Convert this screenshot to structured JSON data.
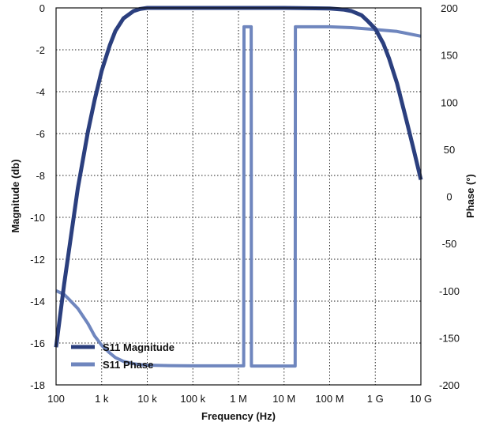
{
  "chart_data": {
    "type": "line",
    "xlabel": "Frequency (Hz)",
    "ylabel_left": "Magnitude (db)",
    "ylabel_right": "Phase (°)",
    "x_scale": "log",
    "xlim": [
      100,
      10000000000
    ],
    "ylim_left": [
      -18,
      0
    ],
    "ylim_right": [
      -200,
      200
    ],
    "grid": true,
    "legend_position": "bottom-left",
    "x_ticks": [
      {
        "value": 100,
        "label": "100"
      },
      {
        "value": 1000,
        "label": "1 k"
      },
      {
        "value": 10000,
        "label": "10 k"
      },
      {
        "value": 100000,
        "label": "100 k"
      },
      {
        "value": 1000000,
        "label": "1 M"
      },
      {
        "value": 10000000,
        "label": "10 M"
      },
      {
        "value": 100000000,
        "label": "100 M"
      },
      {
        "value": 1000000000,
        "label": "1 G"
      },
      {
        "value": 10000000000,
        "label": "10 G"
      }
    ],
    "y_left_ticks": [
      {
        "value": 0,
        "label": "0"
      },
      {
        "value": -2,
        "label": "-2"
      },
      {
        "value": -4,
        "label": "-4"
      },
      {
        "value": -6,
        "label": "-6"
      },
      {
        "value": -8,
        "label": "-8"
      },
      {
        "value": -10,
        "label": "-10"
      },
      {
        "value": -12,
        "label": "-12"
      },
      {
        "value": -14,
        "label": "-14"
      },
      {
        "value": -16,
        "label": "-16"
      },
      {
        "value": -18,
        "label": "-18"
      }
    ],
    "y_right_ticks": [
      {
        "value": 200,
        "label": "200"
      },
      {
        "value": 150,
        "label": "150"
      },
      {
        "value": 100,
        "label": "100"
      },
      {
        "value": 50,
        "label": "50"
      },
      {
        "value": 0,
        "label": "0"
      },
      {
        "value": -50,
        "label": "-50"
      },
      {
        "value": -100,
        "label": "-100"
      },
      {
        "value": -150,
        "label": "-150"
      },
      {
        "value": -200,
        "label": "-200"
      }
    ],
    "series": [
      {
        "name": "S11 Magnitude",
        "axis": "left",
        "color": "#2b3f7e",
        "x": [
          100,
          150,
          200,
          300,
          500,
          700,
          1000,
          1500,
          2000,
          3000,
          5000,
          7000,
          10000,
          100000,
          1000000,
          10000000,
          100000000,
          200000000,
          300000000,
          500000000,
          700000000,
          1000000000,
          1500000000,
          2000000000,
          3000000000,
          5000000000,
          7000000000,
          10000000000
        ],
        "y": [
          -16.2,
          -13.2,
          -11.3,
          -8.6,
          -5.9,
          -4.4,
          -3.0,
          -1.8,
          -1.1,
          -0.5,
          -0.15,
          -0.05,
          0,
          0,
          0,
          0,
          -0.03,
          -0.08,
          -0.15,
          -0.35,
          -0.65,
          -1.0,
          -1.7,
          -2.4,
          -3.6,
          -5.5,
          -6.8,
          -8.2
        ]
      },
      {
        "name": "S11 Phase",
        "axis": "right",
        "color": "#6f86be",
        "x": [
          100,
          150,
          200,
          300,
          500,
          700,
          1000,
          1500,
          2000,
          3000,
          5000,
          7000,
          10000,
          30000,
          100000,
          1000000,
          1300000,
          1320000,
          1400000,
          1900000,
          1920000,
          2500000,
          10000000,
          17500000,
          17700000,
          30000000,
          100000000,
          300000000,
          1000000000,
          3000000000,
          10000000000
        ],
        "y": [
          -100,
          -104,
          -110,
          -119,
          -135,
          -148,
          -158,
          -166,
          -171,
          -175,
          -177.5,
          -178.5,
          -179,
          -179.5,
          -179.8,
          -179.8,
          -179.8,
          180,
          180,
          180,
          -180,
          -180,
          -180,
          -180,
          180,
          180,
          180,
          179,
          177,
          175,
          170
        ]
      }
    ]
  }
}
